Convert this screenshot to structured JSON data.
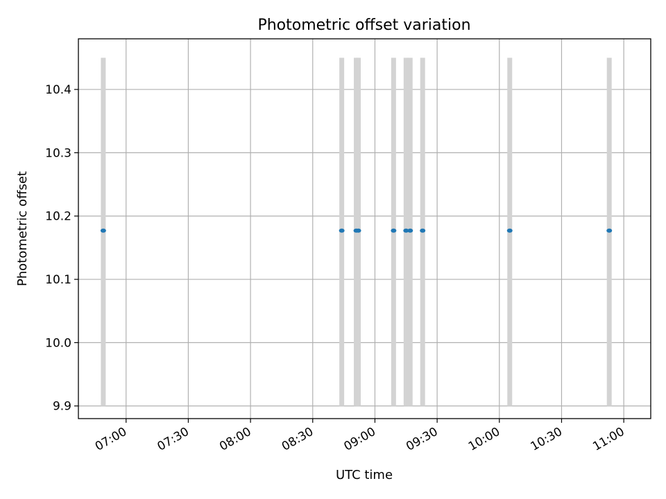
{
  "chart_data": {
    "type": "scatter",
    "title": "Photometric offset variation",
    "xlabel": "UTC time",
    "ylabel": "Photometric offset",
    "grid": true,
    "colors": {
      "points": "#1f77b4",
      "errorbars": "#d3d3d3",
      "grid": "#b0b0b0",
      "frame": "#000000"
    },
    "xlim": [
      "06:37",
      "11:13"
    ],
    "ylim": [
      9.88,
      10.48
    ],
    "x_ticks": [
      "07:00",
      "07:30",
      "08:00",
      "08:30",
      "09:00",
      "09:30",
      "10:00",
      "10:30",
      "11:00"
    ],
    "y_ticks": [
      "9.9",
      "10.0",
      "10.1",
      "10.2",
      "10.3",
      "10.4"
    ],
    "error_range": [
      9.9,
      10.45
    ],
    "points": [
      {
        "x": "06:49",
        "y": 10.177
      },
      {
        "x": "08:44",
        "y": 10.177
      },
      {
        "x": "08:51",
        "y": 10.177
      },
      {
        "x": "08:52",
        "y": 10.177
      },
      {
        "x": "09:09",
        "y": 10.177
      },
      {
        "x": "09:15",
        "y": 10.177
      },
      {
        "x": "09:17",
        "y": 10.177
      },
      {
        "x": "09:23",
        "y": 10.177
      },
      {
        "x": "10:05",
        "y": 10.177
      },
      {
        "x": "10:53",
        "y": 10.177
      }
    ]
  }
}
